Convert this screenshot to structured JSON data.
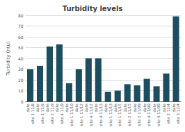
{
  "chart_data": {
    "type": "bar",
    "title": "Turbidity levels",
    "ylabel": "Turbidity (ntu)",
    "categories": [
      "date\nsite 1 11/8",
      "date\nsite 1 11/9",
      "date\nsite 2 11/9",
      "date\nsite 4 11/9",
      "date\nsite 1 11/10",
      "date\nsite 1 11/12",
      "date\nsite 4 11/12",
      "date\nsite 4 11/13",
      "date\nsite 1 11/13",
      "date\nsite 1 11/15",
      "date\nsite 2 11/15",
      "date\nsite 2 11/09",
      "date\nsite 4 11/09",
      "date\nsite 4 11/09",
      "date\nsite 2 12/4",
      "date\nsite 3 12/4"
    ],
    "values": [
      30,
      33,
      51,
      53,
      17,
      30,
      40,
      40,
      9,
      10,
      16,
      15,
      21,
      14,
      26,
      79
    ],
    "color": "#1d4e5f",
    "ylim": [
      0,
      80
    ],
    "yticks": [
      0,
      10,
      20,
      30,
      40,
      50,
      60,
      70,
      80
    ],
    "grid": true
  }
}
